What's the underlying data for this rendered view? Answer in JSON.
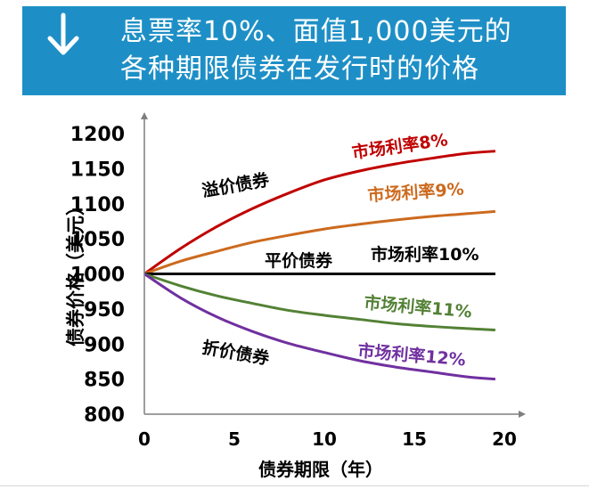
{
  "header": {
    "icon": "arrow-down-icon",
    "background": "#1e8fc6",
    "title_line1": "息票率10%、面值1,000美元的",
    "title_line2": "各种期限债券在发行时的价格"
  },
  "chart_data": {
    "type": "line",
    "xlabel": "债券期限（年）",
    "ylabel": "债券价格（美元）",
    "xlim": [
      0,
      20
    ],
    "ylim": [
      800,
      1200
    ],
    "xticks": [
      "0",
      "5",
      "10",
      "15",
      "20"
    ],
    "yticks": [
      "800",
      "850",
      "900",
      "950",
      "1000",
      "1050",
      "1100",
      "1150",
      "1200"
    ],
    "grid": false,
    "series": [
      {
        "name": "市场利率8%",
        "color": "#c00000",
        "x": [
          0,
          2,
          4,
          6,
          8,
          10,
          12,
          14,
          16,
          18,
          19.5
        ],
        "y": [
          1000,
          1036,
          1067,
          1093,
          1115,
          1134,
          1147,
          1157,
          1165,
          1172,
          1175
        ]
      },
      {
        "name": "市场利率9%",
        "color": "#cc6a1e",
        "x": [
          0,
          2,
          4,
          6,
          8,
          10,
          12,
          14,
          16,
          18,
          19.5
        ],
        "y": [
          1000,
          1018,
          1032,
          1045,
          1055,
          1064,
          1071,
          1077,
          1082,
          1086,
          1089
        ]
      },
      {
        "name": "市场利率10%",
        "color": "#000000",
        "x": [
          0,
          19.5
        ],
        "y": [
          1000,
          1000
        ]
      },
      {
        "name": "市场利率11%",
        "color": "#538135",
        "x": [
          0,
          2,
          4,
          6,
          8,
          10,
          12,
          14,
          16,
          18,
          19.5
        ],
        "y": [
          1000,
          983,
          969,
          958,
          948,
          941,
          935,
          929,
          925,
          922,
          920
        ]
      },
      {
        "name": "市场利率12%",
        "color": "#7030a0",
        "x": [
          0,
          2,
          4,
          6,
          8,
          10,
          12,
          14,
          16,
          18,
          19.5
        ],
        "y": [
          1000,
          966,
          939,
          918,
          901,
          888,
          876,
          867,
          860,
          853,
          850
        ]
      }
    ],
    "annotations": [
      {
        "text": "溢价债券",
        "color": "#000000"
      },
      {
        "text": "平价债券",
        "color": "#000000"
      },
      {
        "text": "折价债券",
        "color": "#000000"
      }
    ]
  }
}
